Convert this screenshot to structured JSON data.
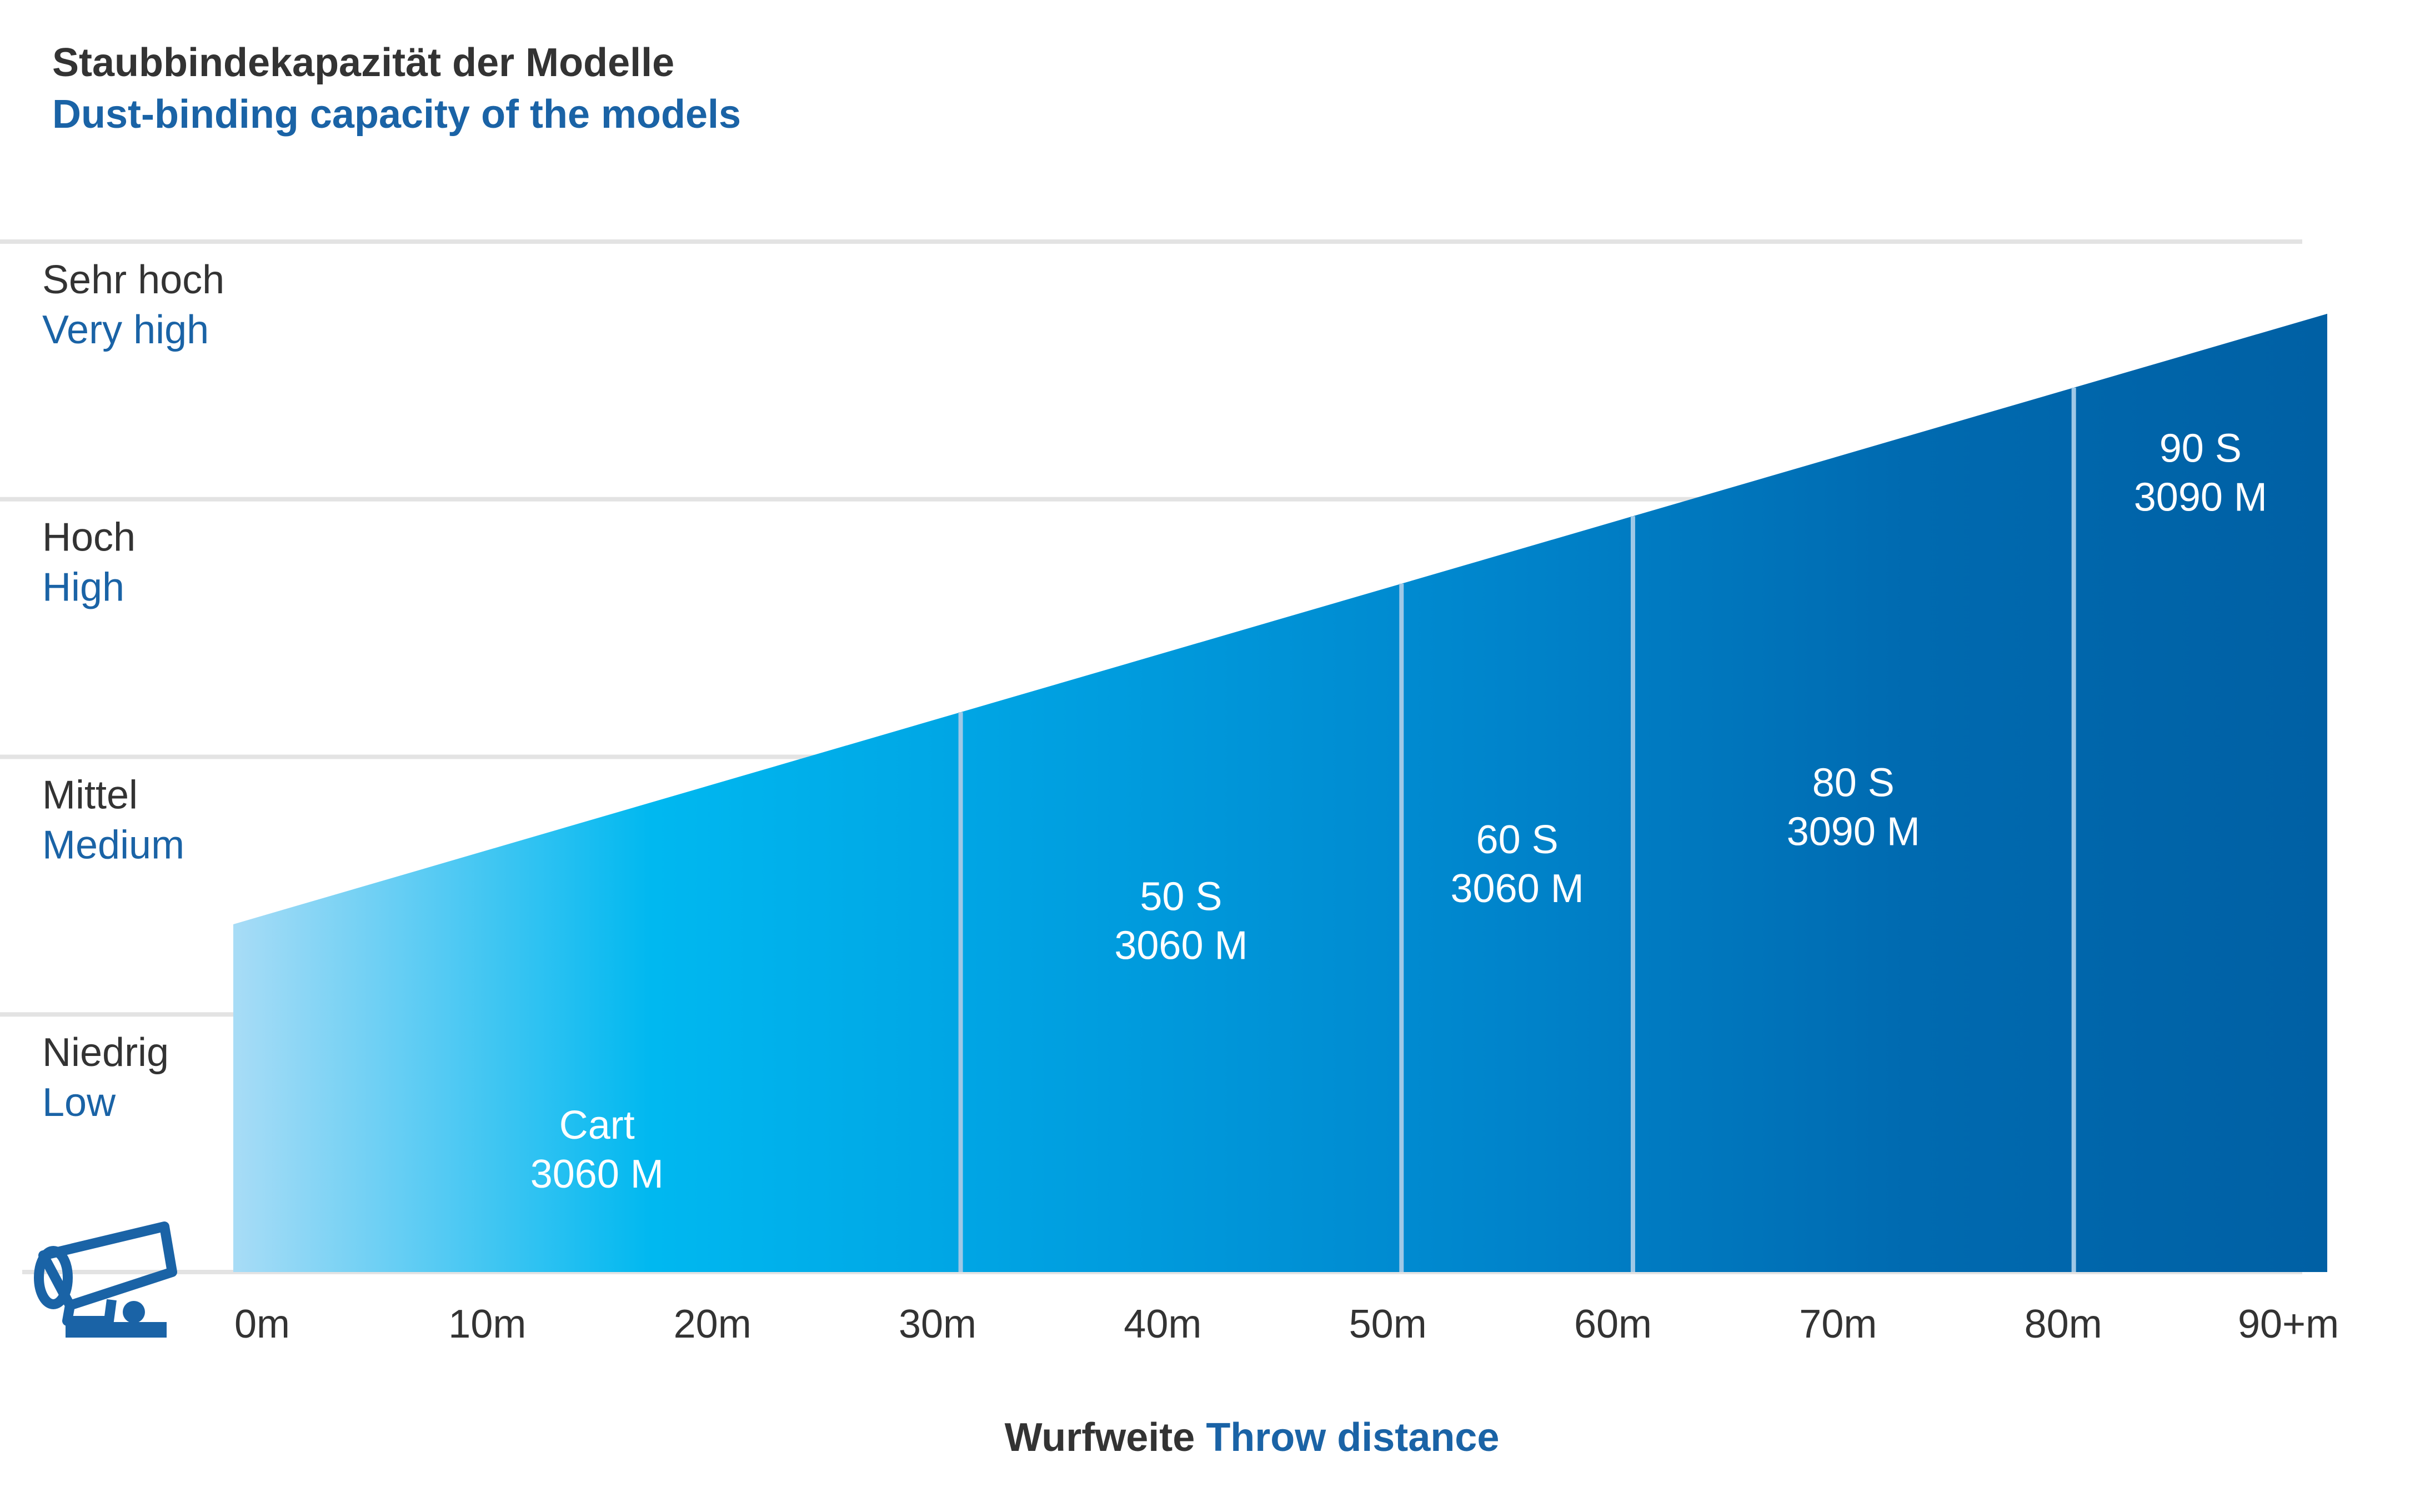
{
  "title_de": "Staubbindekapazität der Modelle",
  "title_en": "Dust-binding capacity of the models",
  "xaxis": {
    "label_de": "Wurfweite",
    "label_en": "Throw distance"
  },
  "colors": {
    "title_dark": "#333333",
    "accent_blue": "#1a63a6",
    "gridline": "#e3e3e3",
    "segment_divider": "#9fc8e6",
    "segment_text": "#ffffff",
    "gradient_stops": [
      "#a8dcf6",
      "#00b8f0",
      "#009fe0",
      "#0085cc",
      "#006ab0",
      "#0060a4"
    ]
  },
  "icon": "dust-cannon-icon",
  "chart_data": {
    "type": "area",
    "title": "Staubbindekapazität der Modelle / Dust-binding capacity of the models",
    "xlabel": "Wurfweite Throw distance",
    "x_ticks": [
      "0m",
      "10m",
      "20m",
      "30m",
      "40m",
      "50m",
      "60m",
      "70m",
      "80m",
      "90+m"
    ],
    "xlim": [
      0,
      95
    ],
    "ylim": [
      0,
      4
    ],
    "y_levels": [
      {
        "value": 1,
        "label_de": "Niedrig",
        "label_en": "Low"
      },
      {
        "value": 2,
        "label_de": "Mittel",
        "label_en": "Medium"
      },
      {
        "value": 3,
        "label_de": "Hoch",
        "label_en": "High"
      },
      {
        "value": 4,
        "label_de": "Sehr hoch",
        "label_en": "Very high"
      }
    ],
    "capacity_line": {
      "x": [
        0,
        95
      ],
      "y": [
        1.35,
        3.72
      ]
    },
    "segments": [
      {
        "x_start": 0,
        "x_end": 33,
        "line1": "Cart",
        "line2": "3060 M"
      },
      {
        "x_start": 33,
        "x_end": 53,
        "line1": "50 S",
        "line2": "3060 M"
      },
      {
        "x_start": 53,
        "x_end": 63.5,
        "line1": "60 S",
        "line2": "3060 M"
      },
      {
        "x_start": 63.5,
        "x_end": 83.5,
        "line1": "80 S",
        "line2": "3090 M"
      },
      {
        "x_start": 83.5,
        "x_end": 95,
        "line1": "90 S",
        "line2": "3090 M"
      }
    ],
    "grid": true
  }
}
